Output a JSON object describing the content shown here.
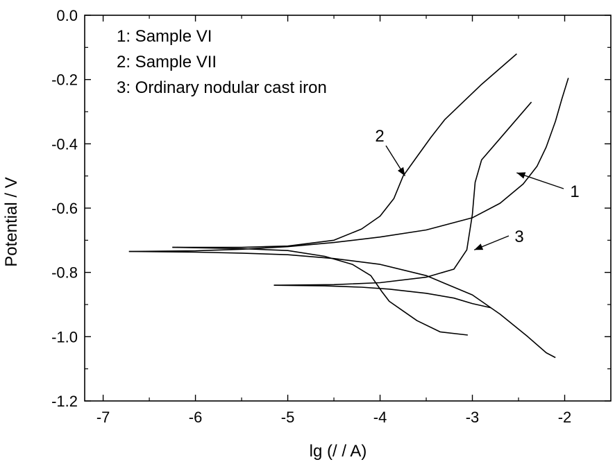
{
  "chart_data": {
    "type": "line",
    "title": "",
    "xlabel": "lg (/ / A)",
    "ylabel": "Potential / V",
    "xlim": [
      -7.2,
      -1.5
    ],
    "ylim": [
      -1.2,
      0.0
    ],
    "xticks": [
      -7,
      -6,
      -5,
      -4,
      -3,
      -2
    ],
    "yticks": [
      0.0,
      -0.2,
      -0.4,
      -0.6,
      -0.8,
      -1.0,
      -1.2
    ],
    "xtick_labels": [
      "-7",
      "-6",
      "-5",
      "-4",
      "-3",
      "-2"
    ],
    "ytick_labels": [
      "0.0",
      "-0.2",
      "-0.4",
      "-0.6",
      "-0.8",
      "-1.0",
      "-1.2"
    ],
    "grid": false,
    "legend_position": "top-left",
    "legend": [
      {
        "text": "1: Sample VI"
      },
      {
        "text": "2: Sample VII"
      },
      {
        "text": "3: Ordinary nodular cast iron"
      }
    ],
    "callouts": [
      {
        "label": "1",
        "series": "1",
        "x": -2.52,
        "y": -0.49
      },
      {
        "label": "2",
        "series": "2",
        "x": -3.73,
        "y": -0.5
      },
      {
        "label": "3",
        "series": "3",
        "x": -2.98,
        "y": -0.73
      }
    ],
    "series": [
      {
        "id": "1",
        "points": [
          [
            -6.72,
            -0.735
          ],
          [
            -6.0,
            -0.733
          ],
          [
            -5.5,
            -0.728
          ],
          [
            -5.0,
            -0.72
          ],
          [
            -4.5,
            -0.707
          ],
          [
            -4.0,
            -0.69
          ],
          [
            -3.5,
            -0.668
          ],
          [
            -3.0,
            -0.63
          ],
          [
            -2.7,
            -0.585
          ],
          [
            -2.45,
            -0.525
          ],
          [
            -2.3,
            -0.47
          ],
          [
            -2.2,
            -0.41
          ],
          [
            -2.1,
            -0.33
          ],
          [
            -2.03,
            -0.26
          ],
          [
            -1.96,
            -0.195
          ]
        ]
      },
      {
        "id": "1-cathodic",
        "points": [
          [
            -6.72,
            -0.735
          ],
          [
            -6.0,
            -0.737
          ],
          [
            -5.5,
            -0.74
          ],
          [
            -5.0,
            -0.745
          ],
          [
            -4.5,
            -0.757
          ],
          [
            -4.0,
            -0.775
          ],
          [
            -3.5,
            -0.81
          ],
          [
            -3.0,
            -0.87
          ],
          [
            -2.7,
            -0.93
          ],
          [
            -2.4,
            -1.0
          ],
          [
            -2.2,
            -1.05
          ],
          [
            -2.1,
            -1.065
          ]
        ]
      },
      {
        "id": "2",
        "points": [
          [
            -6.25,
            -0.722
          ],
          [
            -5.5,
            -0.722
          ],
          [
            -5.0,
            -0.718
          ],
          [
            -4.5,
            -0.7
          ],
          [
            -4.2,
            -0.665
          ],
          [
            -4.0,
            -0.625
          ],
          [
            -3.85,
            -0.57
          ],
          [
            -3.75,
            -0.5
          ],
          [
            -3.6,
            -0.44
          ],
          [
            -3.45,
            -0.38
          ],
          [
            -3.3,
            -0.325
          ],
          [
            -3.1,
            -0.27
          ],
          [
            -2.9,
            -0.215
          ],
          [
            -2.7,
            -0.165
          ],
          [
            -2.52,
            -0.12
          ]
        ]
      },
      {
        "id": "2-cathodic",
        "points": [
          [
            -6.25,
            -0.722
          ],
          [
            -5.5,
            -0.726
          ],
          [
            -5.0,
            -0.732
          ],
          [
            -4.6,
            -0.75
          ],
          [
            -4.3,
            -0.775
          ],
          [
            -4.1,
            -0.81
          ],
          [
            -3.98,
            -0.86
          ],
          [
            -3.9,
            -0.89
          ],
          [
            -3.75,
            -0.92
          ],
          [
            -3.6,
            -0.95
          ],
          [
            -3.35,
            -0.985
          ],
          [
            -3.05,
            -0.995
          ]
        ]
      },
      {
        "id": "3",
        "points": [
          [
            -5.15,
            -0.84
          ],
          [
            -4.5,
            -0.838
          ],
          [
            -4.0,
            -0.832
          ],
          [
            -3.5,
            -0.815
          ],
          [
            -3.2,
            -0.79
          ],
          [
            -3.06,
            -0.73
          ],
          [
            -3.0,
            -0.62
          ],
          [
            -2.97,
            -0.52
          ],
          [
            -2.9,
            -0.45
          ],
          [
            -2.75,
            -0.4
          ],
          [
            -2.6,
            -0.35
          ],
          [
            -2.36,
            -0.27
          ]
        ]
      },
      {
        "id": "3-cathodic",
        "points": [
          [
            -5.15,
            -0.84
          ],
          [
            -4.6,
            -0.842
          ],
          [
            -4.2,
            -0.846
          ],
          [
            -3.9,
            -0.852
          ],
          [
            -3.5,
            -0.865
          ],
          [
            -3.2,
            -0.88
          ],
          [
            -3.0,
            -0.897
          ],
          [
            -2.8,
            -0.91
          ]
        ]
      }
    ]
  }
}
